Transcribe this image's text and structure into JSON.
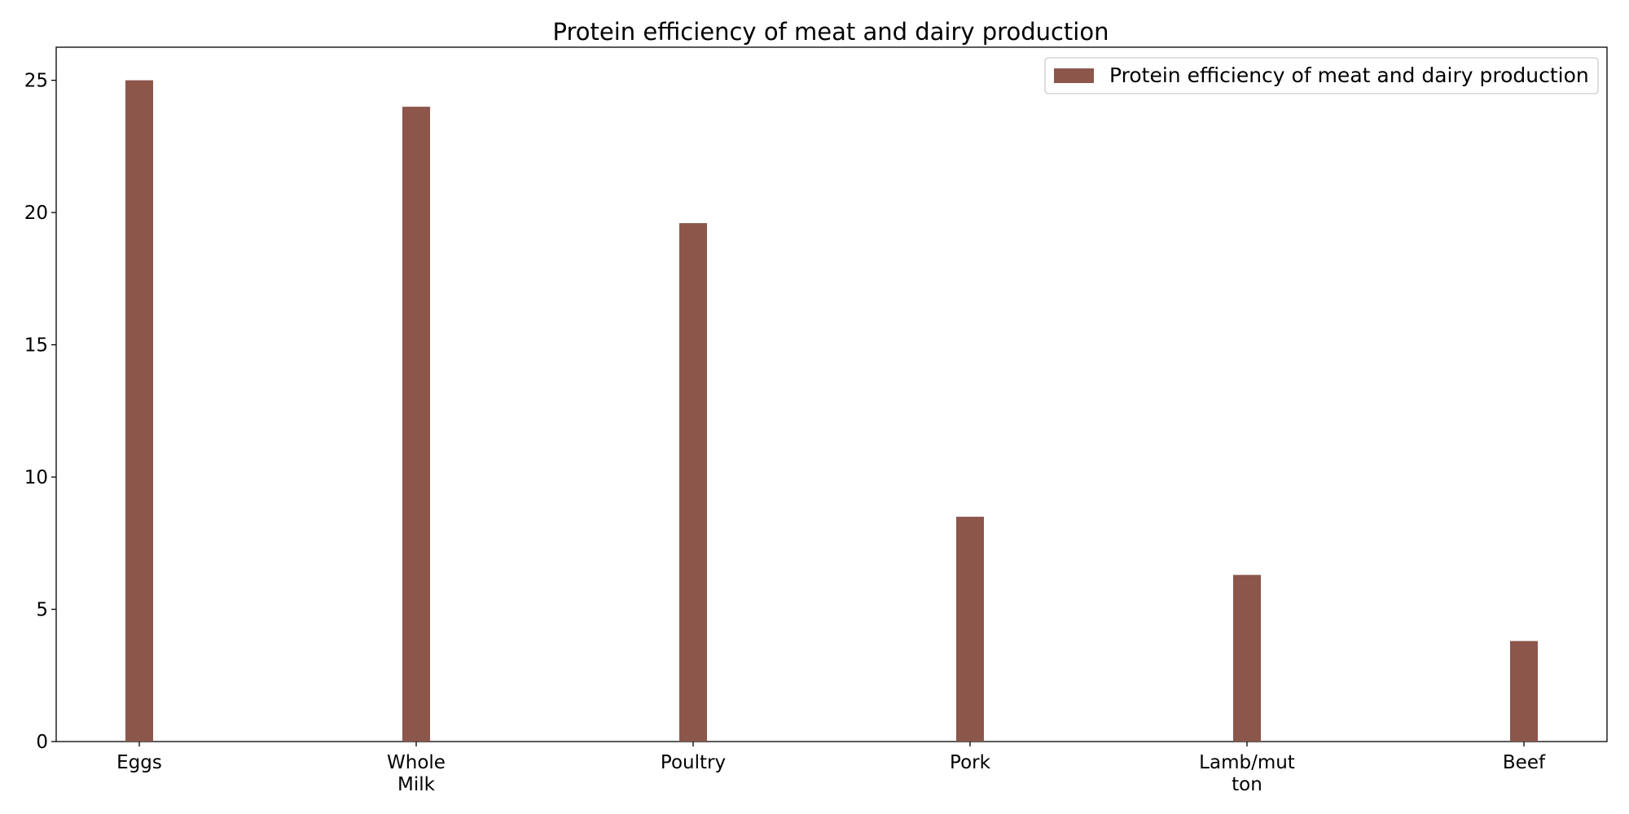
{
  "chart_data": {
    "type": "bar",
    "title": "Protein efficiency of meat and dairy production",
    "categories": [
      [
        "Eggs"
      ],
      [
        "Whole",
        "Milk"
      ],
      [
        "Poultry"
      ],
      [
        "Pork"
      ],
      [
        "Lamb/mut",
        "ton"
      ],
      [
        "Beef"
      ]
    ],
    "series": [
      {
        "name": "Protein efficiency of meat and dairy production",
        "values": [
          25,
          24,
          19.6,
          8.5,
          6.3,
          3.8
        ],
        "color": "#8c564b"
      }
    ],
    "xlabel": "",
    "ylabel": "",
    "ylim": [
      0,
      26.25
    ],
    "yticks": [
      0,
      5,
      10,
      15,
      20,
      25
    ],
    "grid": false,
    "legend_position": "top-right"
  }
}
